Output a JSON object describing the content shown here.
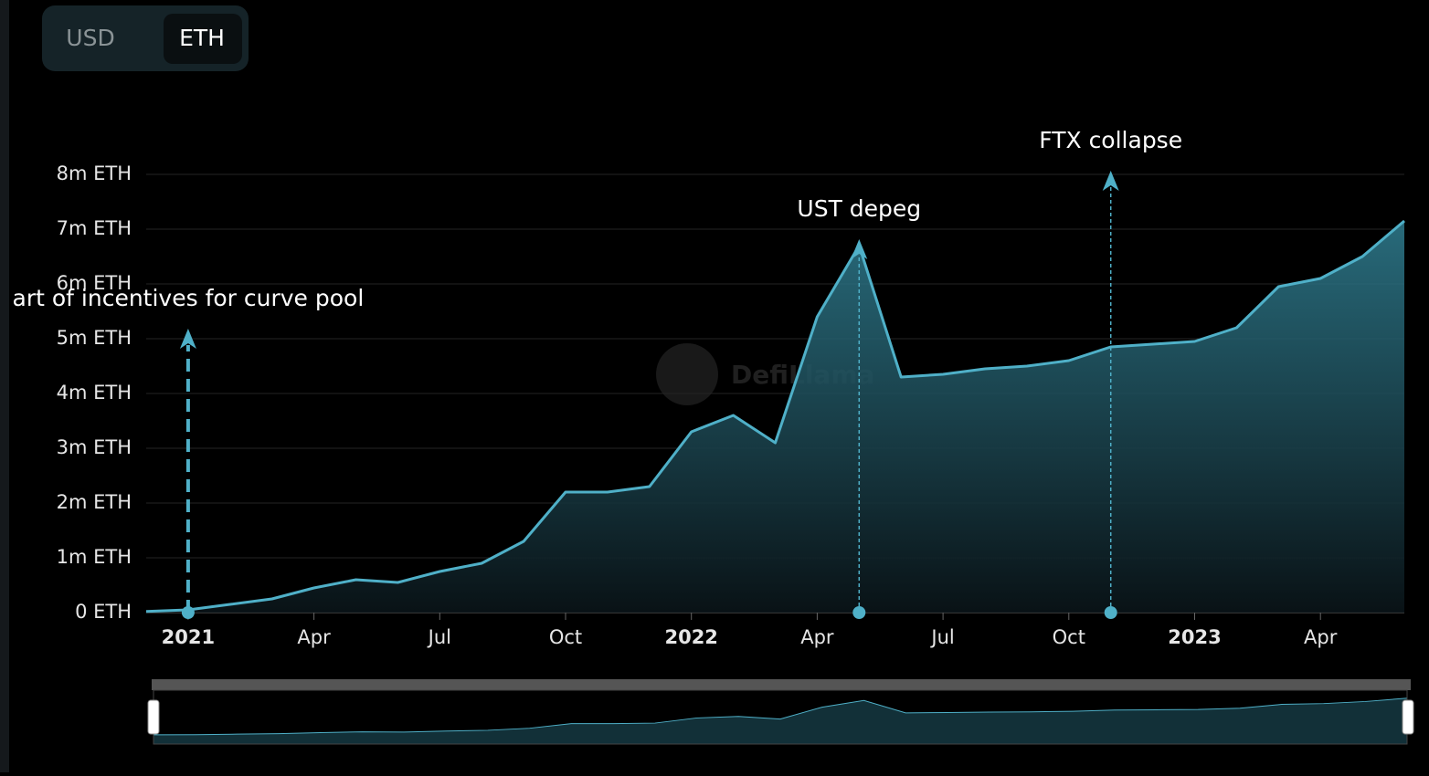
{
  "currency_toggle": {
    "options": [
      "USD",
      "ETH"
    ],
    "selected": "ETH"
  },
  "chart_data": {
    "type": "area",
    "watermark": "DefiLlama",
    "x": [
      "2020-12",
      "2021-01",
      "2021-02",
      "2021-03",
      "2021-04",
      "2021-05",
      "2021-06",
      "2021-07",
      "2021-08",
      "2021-09",
      "2021-10",
      "2021-11",
      "2021-12",
      "2022-01",
      "2022-02",
      "2022-03",
      "2022-04",
      "2022-05",
      "2022-06",
      "2022-07",
      "2022-08",
      "2022-09",
      "2022-10",
      "2022-11",
      "2022-12",
      "2023-01",
      "2023-02",
      "2023-03",
      "2023-04",
      "2023-05",
      "2023-06"
    ],
    "series": [
      {
        "name": "ETH",
        "color": "#4fb0c8",
        "values": [
          20000,
          50000,
          150000,
          250000,
          450000,
          600000,
          550000,
          750000,
          900000,
          1300000,
          2200000,
          2200000,
          2300000,
          3300000,
          3600000,
          3100000,
          5400000,
          6700000,
          4300000,
          4350000,
          4450000,
          4500000,
          4600000,
          4850000,
          4900000,
          4950000,
          5200000,
          5950000,
          6100000,
          6500000,
          7150000
        ]
      }
    ],
    "xlim": [
      "2020-12",
      "2023-06"
    ],
    "xticks": [
      {
        "value": "2021-01",
        "label": "2021"
      },
      {
        "value": "2021-04",
        "label": "Apr"
      },
      {
        "value": "2021-07",
        "label": "Jul"
      },
      {
        "value": "2021-10",
        "label": "Oct"
      },
      {
        "value": "2022-01",
        "label": "2022"
      },
      {
        "value": "2022-04",
        "label": "Apr"
      },
      {
        "value": "2022-07",
        "label": "Jul"
      },
      {
        "value": "2022-10",
        "label": "Oct"
      },
      {
        "value": "2023-01",
        "label": "2023"
      },
      {
        "value": "2023-04",
        "label": "Apr"
      }
    ],
    "ylim": [
      0,
      8000000
    ],
    "yticks": [
      {
        "value": 0,
        "label": "0 ETH"
      },
      {
        "value": 1000000,
        "label": "1m ETH"
      },
      {
        "value": 2000000,
        "label": "2m ETH"
      },
      {
        "value": 3000000,
        "label": "3m ETH"
      },
      {
        "value": 4000000,
        "label": "4m ETH"
      },
      {
        "value": 5000000,
        "label": "5m ETH"
      },
      {
        "value": 6000000,
        "label": "6m ETH"
      },
      {
        "value": 7000000,
        "label": "7m ETH"
      },
      {
        "value": 8000000,
        "label": "8m ETH"
      }
    ],
    "grid": true,
    "annotations": [
      {
        "x": "2021-01",
        "label": "art of incentives for curve pool"
      },
      {
        "x": "2022-05",
        "label": "UST depeg"
      },
      {
        "x": "2022-11",
        "label": "FTX collapse"
      }
    ]
  }
}
